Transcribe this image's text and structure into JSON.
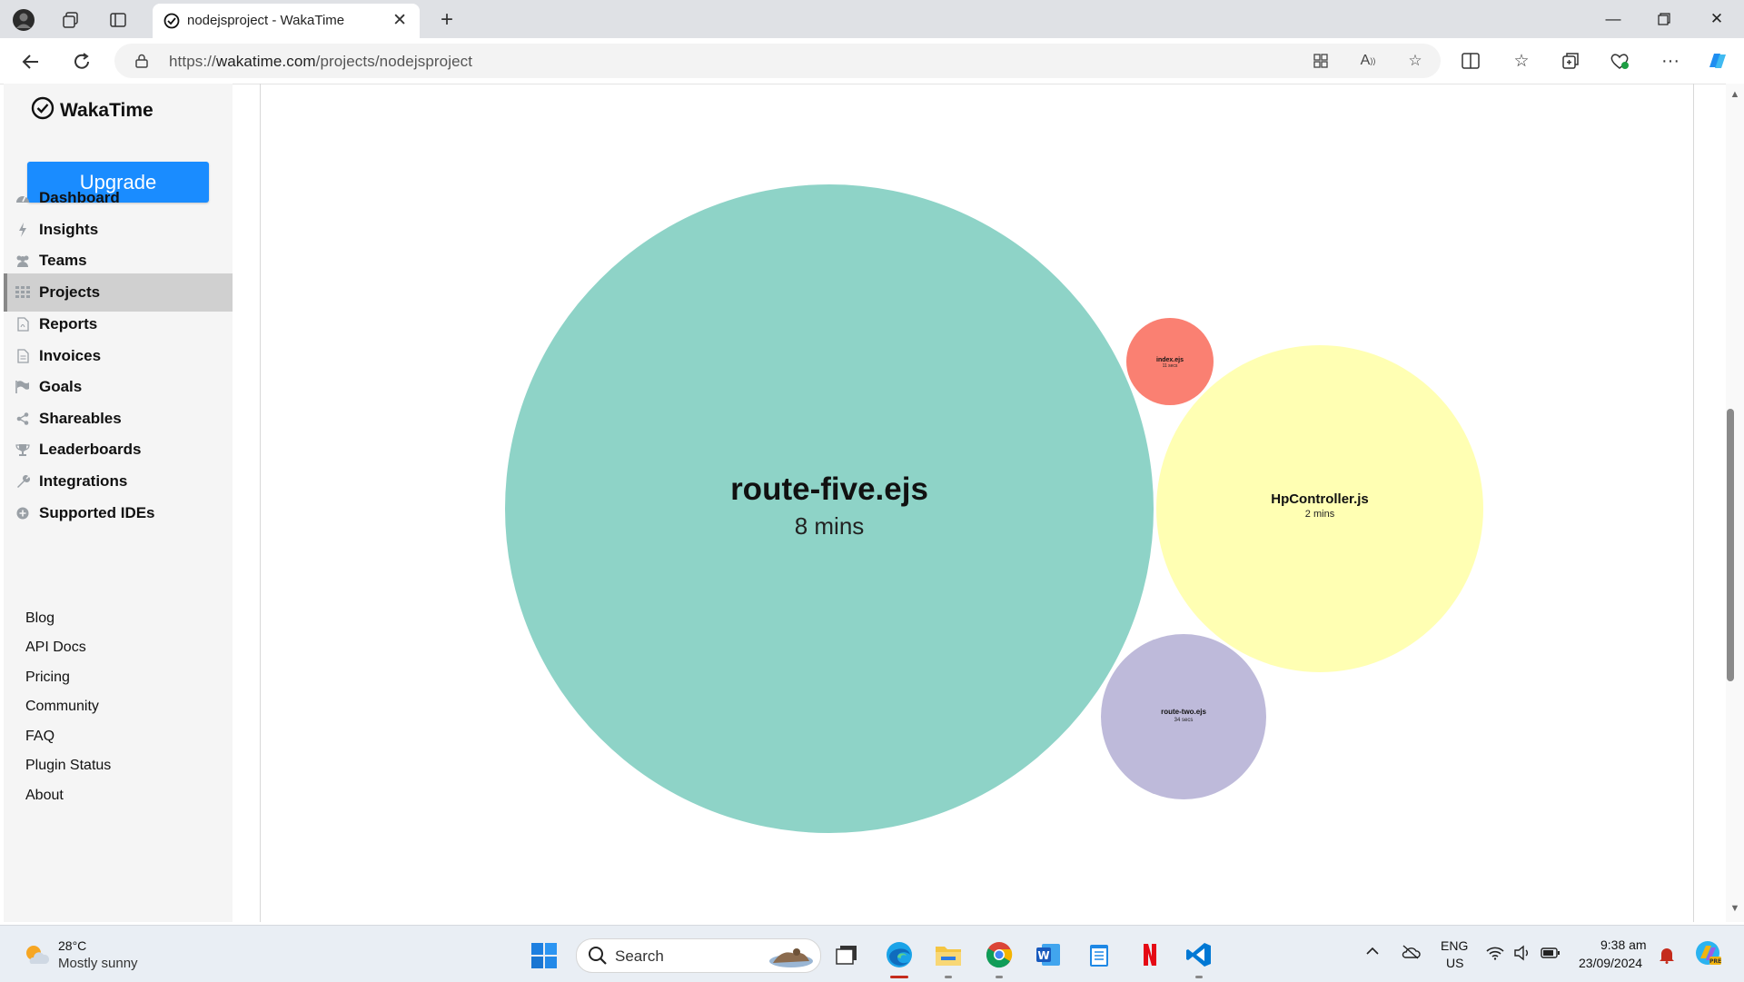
{
  "browser": {
    "tab_title": "nodejsproject - WakaTime",
    "url_prefix": "https://",
    "url_host": "wakatime.com",
    "url_path": "/projects/nodejsproject"
  },
  "sidebar": {
    "logo": "WakaTime",
    "upgrade_label": "Upgrade",
    "items": [
      {
        "label": "Dashboard",
        "icon": "dashboard-icon"
      },
      {
        "label": "Insights",
        "icon": "bolt-icon"
      },
      {
        "label": "Teams",
        "icon": "users-icon"
      },
      {
        "label": "Projects",
        "icon": "grid-icon",
        "active": true
      },
      {
        "label": "Reports",
        "icon": "file-pdf-icon"
      },
      {
        "label": "Invoices",
        "icon": "file-icon"
      },
      {
        "label": "Goals",
        "icon": "flag-icon"
      },
      {
        "label": "Shareables",
        "icon": "share-icon"
      },
      {
        "label": "Leaderboards",
        "icon": "trophy-icon"
      },
      {
        "label": "Integrations",
        "icon": "wrench-icon"
      },
      {
        "label": "Supported IDEs",
        "icon": "plus-circle-icon"
      }
    ],
    "footer_links": [
      "Blog",
      "API Docs",
      "Pricing",
      "Community",
      "FAQ",
      "Plugin Status",
      "About"
    ]
  },
  "bubbles": [
    {
      "name": "route-five.ejs",
      "time": "8 mins",
      "color": "#8ed3c7"
    },
    {
      "name": "index.ejs",
      "time": "11 secs",
      "color": "#fa8072"
    },
    {
      "name": "HpController.js",
      "time": "2 mins",
      "color": "#ffffb3"
    },
    {
      "name": "route-two.ejs",
      "time": "34 secs",
      "color": "#bebada"
    }
  ],
  "taskbar": {
    "weather_temp": "28°C",
    "weather_desc": "Mostly sunny",
    "search_label": "Search",
    "lang_line1": "ENG",
    "lang_line2": "US",
    "time": "9:38 am",
    "date": "23/09/2024"
  }
}
